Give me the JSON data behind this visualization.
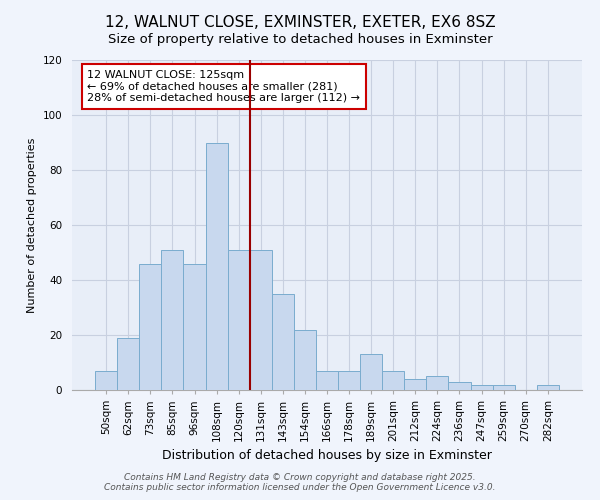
{
  "title": "12, WALNUT CLOSE, EXMINSTER, EXETER, EX6 8SZ",
  "subtitle": "Size of property relative to detached houses in Exminster",
  "xlabel": "Distribution of detached houses by size in Exminster",
  "ylabel": "Number of detached properties",
  "bar_labels": [
    "50sqm",
    "62sqm",
    "73sqm",
    "85sqm",
    "96sqm",
    "108sqm",
    "120sqm",
    "131sqm",
    "143sqm",
    "154sqm",
    "166sqm",
    "178sqm",
    "189sqm",
    "201sqm",
    "212sqm",
    "224sqm",
    "236sqm",
    "247sqm",
    "259sqm",
    "270sqm",
    "282sqm"
  ],
  "bar_heights": [
    7,
    19,
    46,
    51,
    46,
    90,
    51,
    51,
    35,
    22,
    7,
    7,
    13,
    7,
    4,
    5,
    3,
    2,
    2,
    0,
    2
  ],
  "bar_color": "#c8d8ee",
  "bar_edge_color": "#7aacce",
  "vline_x": 6.5,
  "vline_color": "#990000",
  "annotation_line1": "12 WALNUT CLOSE: 125sqm",
  "annotation_line2": "← 69% of detached houses are smaller (281)",
  "annotation_line3": "28% of semi-detached houses are larger (112) →",
  "ylim": [
    0,
    120
  ],
  "yticks": [
    0,
    20,
    40,
    60,
    80,
    100,
    120
  ],
  "bg_color": "#f0f4fc",
  "plot_bg_color": "#e8eef8",
  "grid_color": "#c8d0e0",
  "footer_line1": "Contains HM Land Registry data © Crown copyright and database right 2025.",
  "footer_line2": "Contains public sector information licensed under the Open Government Licence v3.0.",
  "title_fontsize": 11,
  "subtitle_fontsize": 9.5,
  "ylabel_fontsize": 8,
  "xlabel_fontsize": 9,
  "annotation_fontsize": 8,
  "tick_fontsize": 7.5,
  "footer_fontsize": 6.5
}
